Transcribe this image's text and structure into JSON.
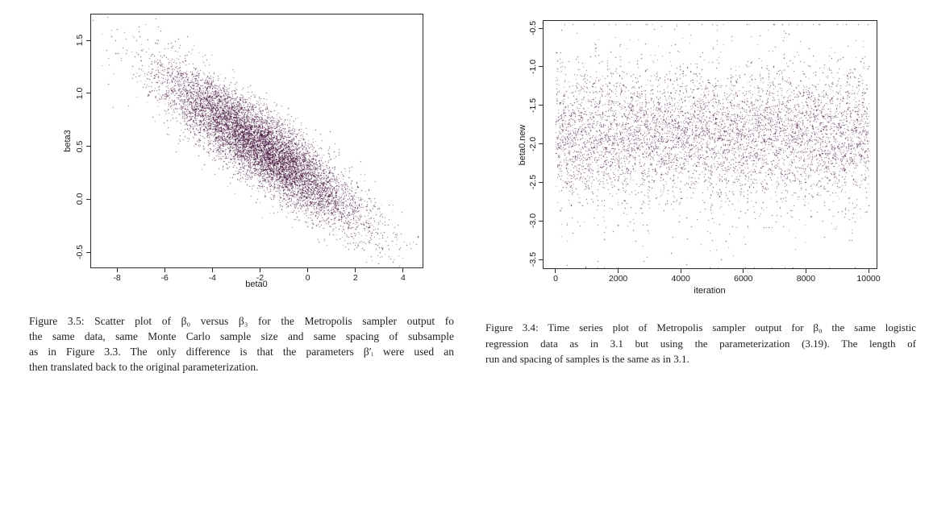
{
  "page": {
    "background": "#ffffff",
    "text_color": "#222222",
    "frame_color": "#2a2a2a"
  },
  "figures": [
    {
      "id": "figure-3-5",
      "caption_lines": [
        "Figure 3.5: Scatter plot of β₀ versus β₃ for the Metropolis sampler output fo",
        "the same data, same Monte Carlo sample size and same spacing of subsample",
        "as in Figure 3.3. The only difference is that the parameters β′ᵢ were used an",
        "then translated back to the original parameterization."
      ]
    },
    {
      "id": "figure-3-4",
      "caption_lines": [
        "Figure 3.4: Time series plot of Metropolis sampler output for β₀ the same logistic",
        "regression data as in 3.1 but using the parameterization (3.19). The length of",
        "run and spacing of samples is the same as in 3.1."
      ]
    }
  ],
  "chart_data": [
    {
      "type": "scatter",
      "title": "",
      "xlabel": "beta0",
      "ylabel": "beta3",
      "xlim": [
        -9.12,
        4.85
      ],
      "ylim": [
        -0.652,
        1.751
      ],
      "x_ticks": [
        -8,
        -6,
        -4,
        -2,
        0,
        2,
        4
      ],
      "x_tick_labels": [
        "-8",
        "-6",
        "-4",
        "-2",
        "0",
        "2",
        "4"
      ],
      "y_ticks": [
        -0.5,
        0.0,
        0.5,
        1.0,
        1.5
      ],
      "y_tick_labels": [
        "-0.5",
        "0.0",
        "0.5",
        "1.0",
        "1.5"
      ],
      "grid": false,
      "legend": "none",
      "point_color": "#3f0d38",
      "distribution": {
        "kind": "bivariate-normal",
        "n": 9000,
        "mean_x": -2.0,
        "sd_x": 2.05,
        "mean_y": 0.5,
        "sd_y": 0.36,
        "correlation": -0.87,
        "x_range_observed": [
          -8.7,
          4.3
        ],
        "y_range_observed": [
          -0.55,
          1.68
        ],
        "seed": 42
      }
    },
    {
      "type": "scatter",
      "title": "",
      "xlabel": "iteration",
      "ylabel": "beta0.new",
      "xlim": [
        -412,
        10283
      ],
      "ylim": [
        -3.625,
        -0.395
      ],
      "x_ticks": [
        0,
        2000,
        4000,
        6000,
        8000,
        10000
      ],
      "x_tick_labels": [
        "0",
        "2000",
        "4000",
        "6000",
        "8000",
        "10000"
      ],
      "y_ticks": [
        -0.5,
        -1.0,
        -1.5,
        -2.0,
        -2.5,
        -3.0,
        -3.5
      ],
      "y_tick_labels": [
        "-0.5",
        "-1.0",
        "-1.5",
        "-2.0",
        "-2.5",
        "-3.0",
        "-3.5"
      ],
      "grid": false,
      "legend": "none",
      "point_color": "#3f0d38",
      "distribution": {
        "kind": "ar1-series",
        "n": 6000,
        "x_start": 0,
        "x_end": 10000,
        "mean": -1.85,
        "sd": 0.42,
        "phi": 0.45,
        "dip_prob": 0.004,
        "y_min": -3.6,
        "y_max": -0.45,
        "seed": 7
      }
    }
  ]
}
